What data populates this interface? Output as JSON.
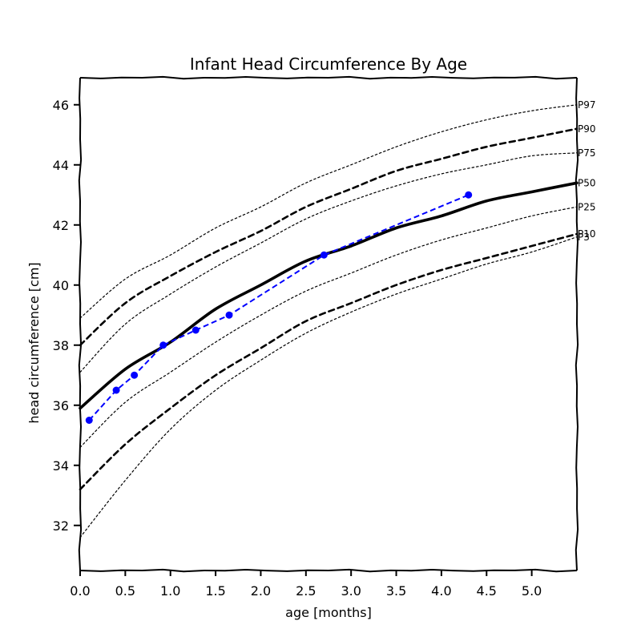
{
  "chart_data": {
    "type": "line",
    "title": "Infant Head Circumference By Age",
    "xlabel": "age [months]",
    "ylabel": "head circumference [cm]",
    "xlim": [
      0.0,
      5.5
    ],
    "ylim": [
      30.5,
      46.9
    ],
    "grid": false,
    "legend": "none",
    "x_ticks": [
      "0.0",
      "0.5",
      "1.0",
      "1.5",
      "2.0",
      "2.5",
      "3.0",
      "3.5",
      "4.0",
      "4.5",
      "5.0"
    ],
    "y_ticks": [
      "32",
      "34",
      "36",
      "38",
      "40",
      "42",
      "44",
      "46"
    ],
    "percentile_x": [
      0.0,
      0.5,
      1.0,
      1.5,
      2.0,
      2.5,
      3.0,
      3.5,
      4.0,
      4.5,
      5.0,
      5.5
    ],
    "percentiles": [
      {
        "label": "P3",
        "style": "dotted",
        "values": [
          31.6,
          33.5,
          35.2,
          36.5,
          37.5,
          38.4,
          39.1,
          39.7,
          40.2,
          40.7,
          41.1,
          41.6
        ]
      },
      {
        "label": "P10",
        "style": "dashed",
        "values": [
          33.2,
          34.7,
          35.9,
          37.0,
          37.9,
          38.8,
          39.4,
          40.0,
          40.5,
          40.9,
          41.3,
          41.7
        ]
      },
      {
        "label": "P25",
        "style": "dotted",
        "values": [
          34.6,
          36.1,
          37.1,
          38.1,
          39.0,
          39.8,
          40.4,
          41.0,
          41.5,
          41.9,
          42.3,
          42.6
        ]
      },
      {
        "label": "P50",
        "style": "solid",
        "values": [
          35.9,
          37.2,
          38.1,
          39.2,
          40.0,
          40.8,
          41.3,
          41.9,
          42.3,
          42.8,
          43.1,
          43.4
        ]
      },
      {
        "label": "P75",
        "style": "dotted",
        "values": [
          37.1,
          38.7,
          39.7,
          40.6,
          41.4,
          42.2,
          42.8,
          43.3,
          43.7,
          44.0,
          44.3,
          44.4
        ]
      },
      {
        "label": "P90",
        "style": "dashed",
        "values": [
          38.0,
          39.4,
          40.3,
          41.1,
          41.8,
          42.6,
          43.2,
          43.8,
          44.2,
          44.6,
          44.9,
          45.2
        ]
      },
      {
        "label": "P97",
        "style": "dotted",
        "values": [
          38.9,
          40.2,
          41.0,
          41.9,
          42.6,
          43.4,
          44.0,
          44.6,
          45.1,
          45.5,
          45.8,
          46.0
        ]
      }
    ],
    "series": [
      {
        "name": "",
        "color": "#0000ff",
        "style": "dashed",
        "marker": "circle",
        "x": [
          0.1,
          0.4,
          0.6,
          0.92,
          1.28,
          1.65,
          2.7,
          4.3
        ],
        "y": [
          35.5,
          36.5,
          37.0,
          38.0,
          38.5,
          39.0,
          41.0,
          43.0
        ]
      }
    ]
  }
}
